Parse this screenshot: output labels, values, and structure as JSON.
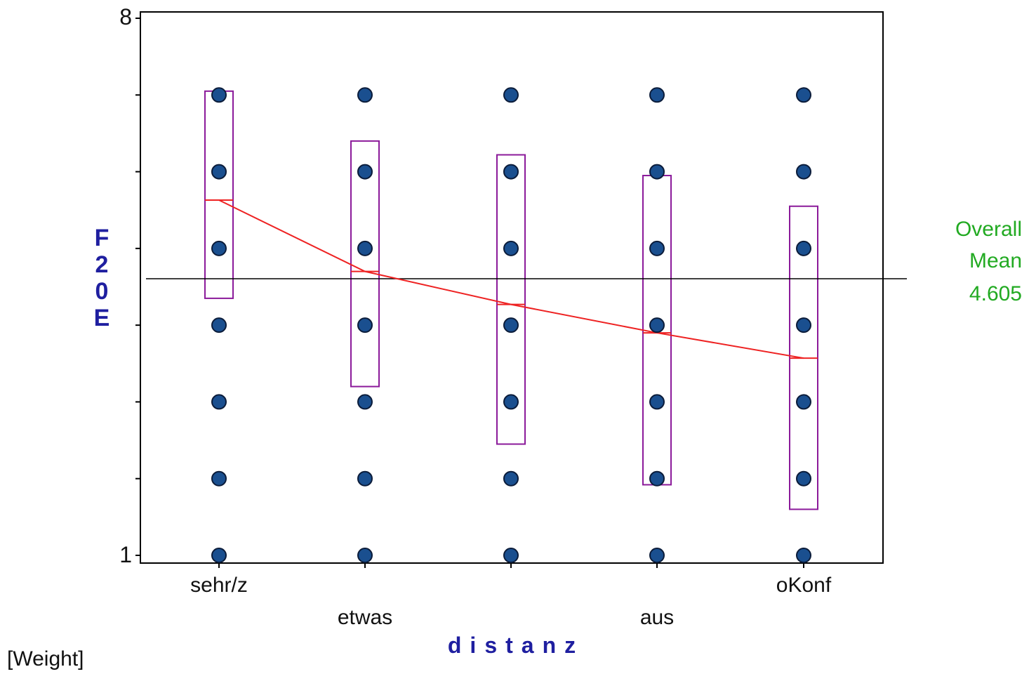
{
  "chart_data": {
    "type": "scatter",
    "title": "",
    "xlabel": "distanz",
    "ylabel": "F20E",
    "ylim": [
      1,
      8
    ],
    "y_ticks_labeled": [
      {
        "value": 8,
        "label": "8"
      },
      {
        "value": 1,
        "label": "1"
      }
    ],
    "y_ticks": [
      1,
      2,
      3,
      4,
      5,
      6,
      7,
      8
    ],
    "categories": [
      "sehr/z",
      "etwas",
      "",
      "aus",
      "oKonf"
    ],
    "points_by_category": [
      [
        1,
        2,
        3,
        4,
        5,
        6,
        7
      ],
      [
        1,
        2,
        3,
        4,
        5,
        6,
        7
      ],
      [
        1,
        2,
        3,
        4,
        5,
        6,
        7
      ],
      [
        1,
        2,
        3,
        4,
        5,
        6,
        7
      ],
      [
        1,
        2,
        3,
        4,
        5,
        6,
        7
      ]
    ],
    "means": [
      5.63,
      4.7,
      4.27,
      3.9,
      3.57
    ],
    "interval_boxes": [
      {
        "low": 4.35,
        "high": 7.05
      },
      {
        "low": 3.2,
        "high": 6.4
      },
      {
        "low": 2.45,
        "high": 6.22
      },
      {
        "low": 1.92,
        "high": 5.95
      },
      {
        "low": 1.6,
        "high": 5.55
      }
    ],
    "overall_mean": 4.605,
    "overall_mean_label_line1": "Overall",
    "overall_mean_label_line2": "Mean",
    "overall_mean_value_text": "4.605",
    "weight_label": "[Weight]",
    "grid": false,
    "colors": {
      "points": "#1a4f8f",
      "point_outline": "#0b1c3a",
      "boxes": "#8b1a9a",
      "mean_line": "#ee2222",
      "overall_mean_line": "#000000",
      "axis_label": "#1f1fa0",
      "overall_mean_text": "#22aa22"
    }
  }
}
